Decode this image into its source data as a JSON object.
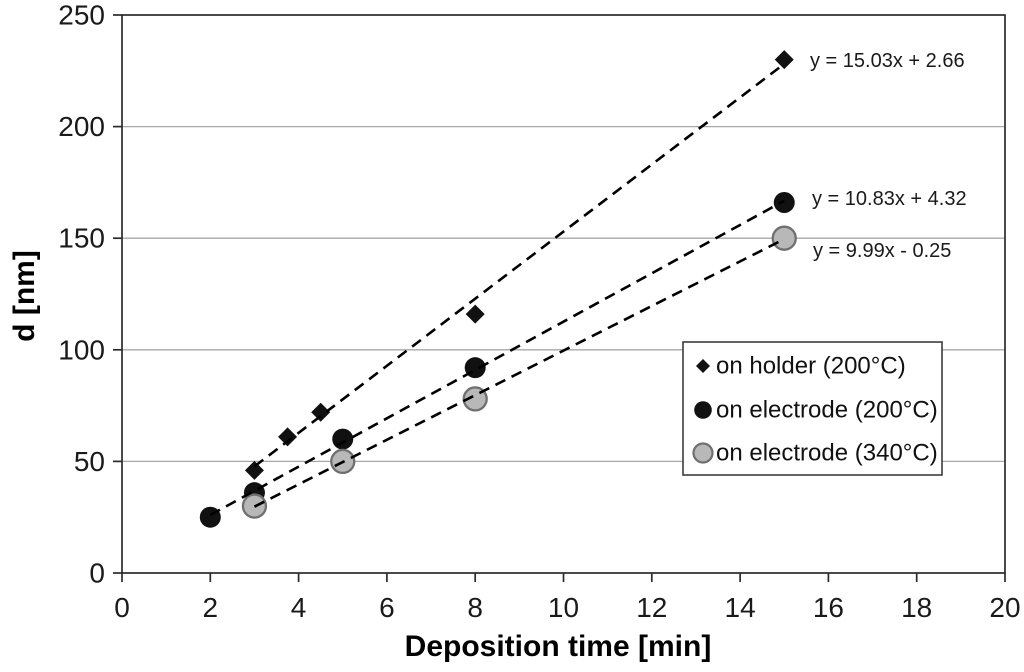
{
  "chart_data": {
    "type": "scatter",
    "title": "",
    "xlabel": "Deposition time [min]",
    "ylabel": "d [nm]",
    "xlim": [
      0,
      20
    ],
    "ylim": [
      0,
      250
    ],
    "x_ticks": [
      0,
      2,
      4,
      6,
      8,
      10,
      12,
      14,
      16,
      18,
      20
    ],
    "y_ticks": [
      0,
      50,
      100,
      150,
      200,
      250
    ],
    "grid": "horizontal-gridlines",
    "legend_position": "middle-right",
    "background": "#ffffff",
    "colors": {
      "grid": "#a8a8a8",
      "frame": "#2b2b2b",
      "text": "#1a1a1a",
      "marker_black": "#111111",
      "marker_gray_fill": "#b8b8b8",
      "marker_gray_stroke": "#6f6f6f",
      "trendline": "#000000"
    },
    "series": [
      {
        "name": "on holder (200°C)",
        "marker": "diamond",
        "color": "#111111",
        "points": [
          [
            3,
            46
          ],
          [
            3.75,
            61
          ],
          [
            4.5,
            72
          ],
          [
            8,
            116
          ],
          [
            15,
            230
          ]
        ],
        "trendline": {
          "style": "dashed",
          "slope": 15.03,
          "intercept": 2.66,
          "label": "y = 15.03x + 2.66",
          "x_range": [
            3,
            15
          ]
        }
      },
      {
        "name": "on electrode (200°C)",
        "marker": "circle",
        "color": "#111111",
        "points": [
          [
            2,
            25
          ],
          [
            3,
            36
          ],
          [
            5,
            60
          ],
          [
            8,
            92
          ],
          [
            15,
            166
          ]
        ],
        "trendline": {
          "style": "dashed",
          "slope": 10.83,
          "intercept": 4.32,
          "label": "y = 10.83x + 4.32",
          "x_range": [
            2,
            15
          ]
        }
      },
      {
        "name": "on electrode (340°C)",
        "marker": "circle",
        "color": "#b8b8b8",
        "marker_stroke": "#6f6f6f",
        "points": [
          [
            3,
            30
          ],
          [
            5,
            50
          ],
          [
            8,
            78
          ],
          [
            15,
            150
          ]
        ],
        "trendline": {
          "style": "dashed",
          "slope": 9.99,
          "intercept": -0.25,
          "label": "y = 9.99x - 0.25",
          "x_range": [
            3,
            15
          ]
        }
      }
    ]
  }
}
